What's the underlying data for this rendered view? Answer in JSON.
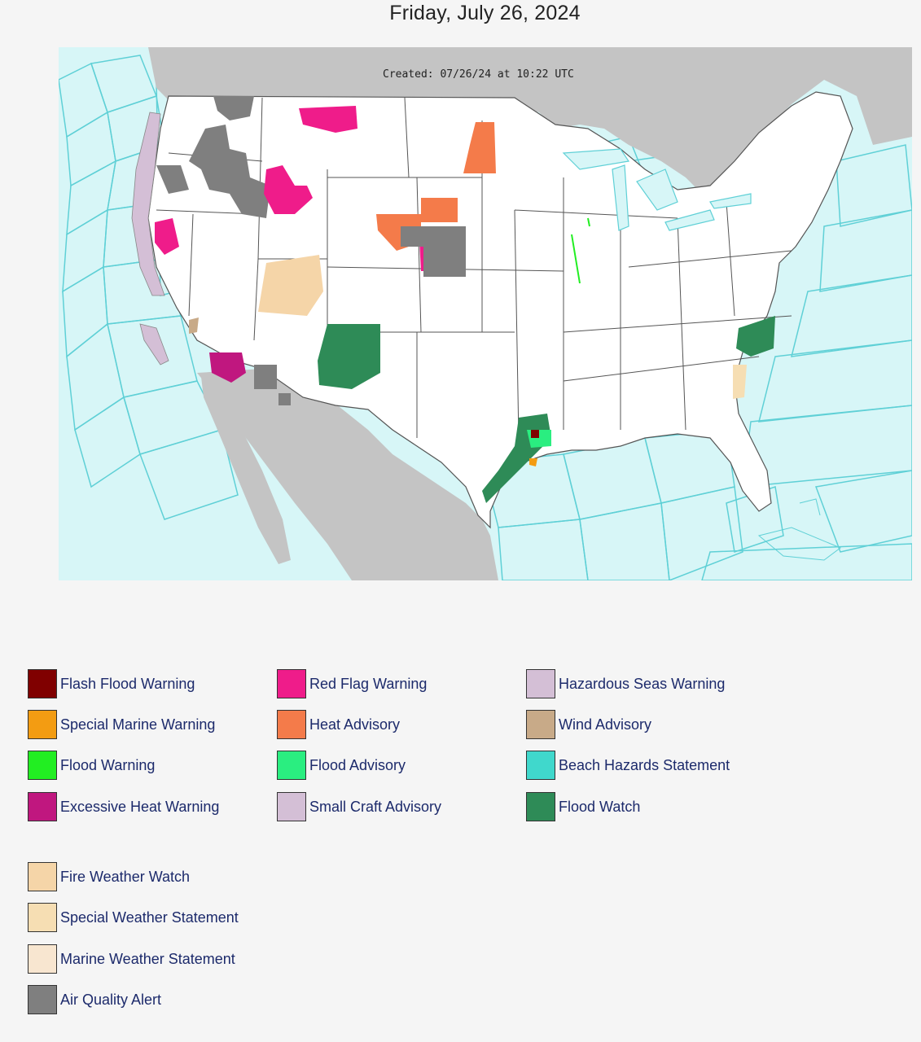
{
  "page": {
    "title": "Friday, July 26, 2024"
  },
  "map": {
    "created": "Created: 07/26/24 at 10:22 UTC",
    "colors": {
      "ocean": "#d7f6f7",
      "land_foreign": "#c4c4c4",
      "land_us": "#ffffff",
      "marine_zone_lines": "#5fd0d6",
      "borders": "#555555"
    }
  },
  "legend": {
    "groups": [
      [
        {
          "label": "Flash Flood Warning",
          "color": "#800000"
        },
        {
          "label": "Special Marine Warning",
          "color": "#f39c12"
        },
        {
          "label": "Flood Warning",
          "color": "#22ee22"
        },
        {
          "label": "Excessive Heat Warning",
          "color": "#c0177f"
        }
      ],
      [
        {
          "label": "Red Flag Warning",
          "color": "#ef1c8a"
        },
        {
          "label": "Heat Advisory",
          "color": "#f47b4a"
        },
        {
          "label": "Flood Advisory",
          "color": "#2aee80"
        },
        {
          "label": "Small Craft Advisory",
          "color": "#d4bfd6"
        }
      ],
      [
        {
          "label": "Hazardous Seas Warning",
          "color": "#d4bfd6"
        },
        {
          "label": "Wind Advisory",
          "color": "#c8aa88"
        },
        {
          "label": "Beach Hazards Statement",
          "color": "#40d8cc"
        },
        {
          "label": "Flood Watch",
          "color": "#2e8b57"
        }
      ],
      [
        {
          "label": "Fire Weather Watch",
          "color": "#f5d5a8"
        },
        {
          "label": "Special Weather Statement",
          "color": "#f6deb3"
        },
        {
          "label": "Marine Weather Statement",
          "color": "#f8e6d0"
        },
        {
          "label": "Air Quality Alert",
          "color": "#7f7f7f"
        }
      ]
    ]
  }
}
